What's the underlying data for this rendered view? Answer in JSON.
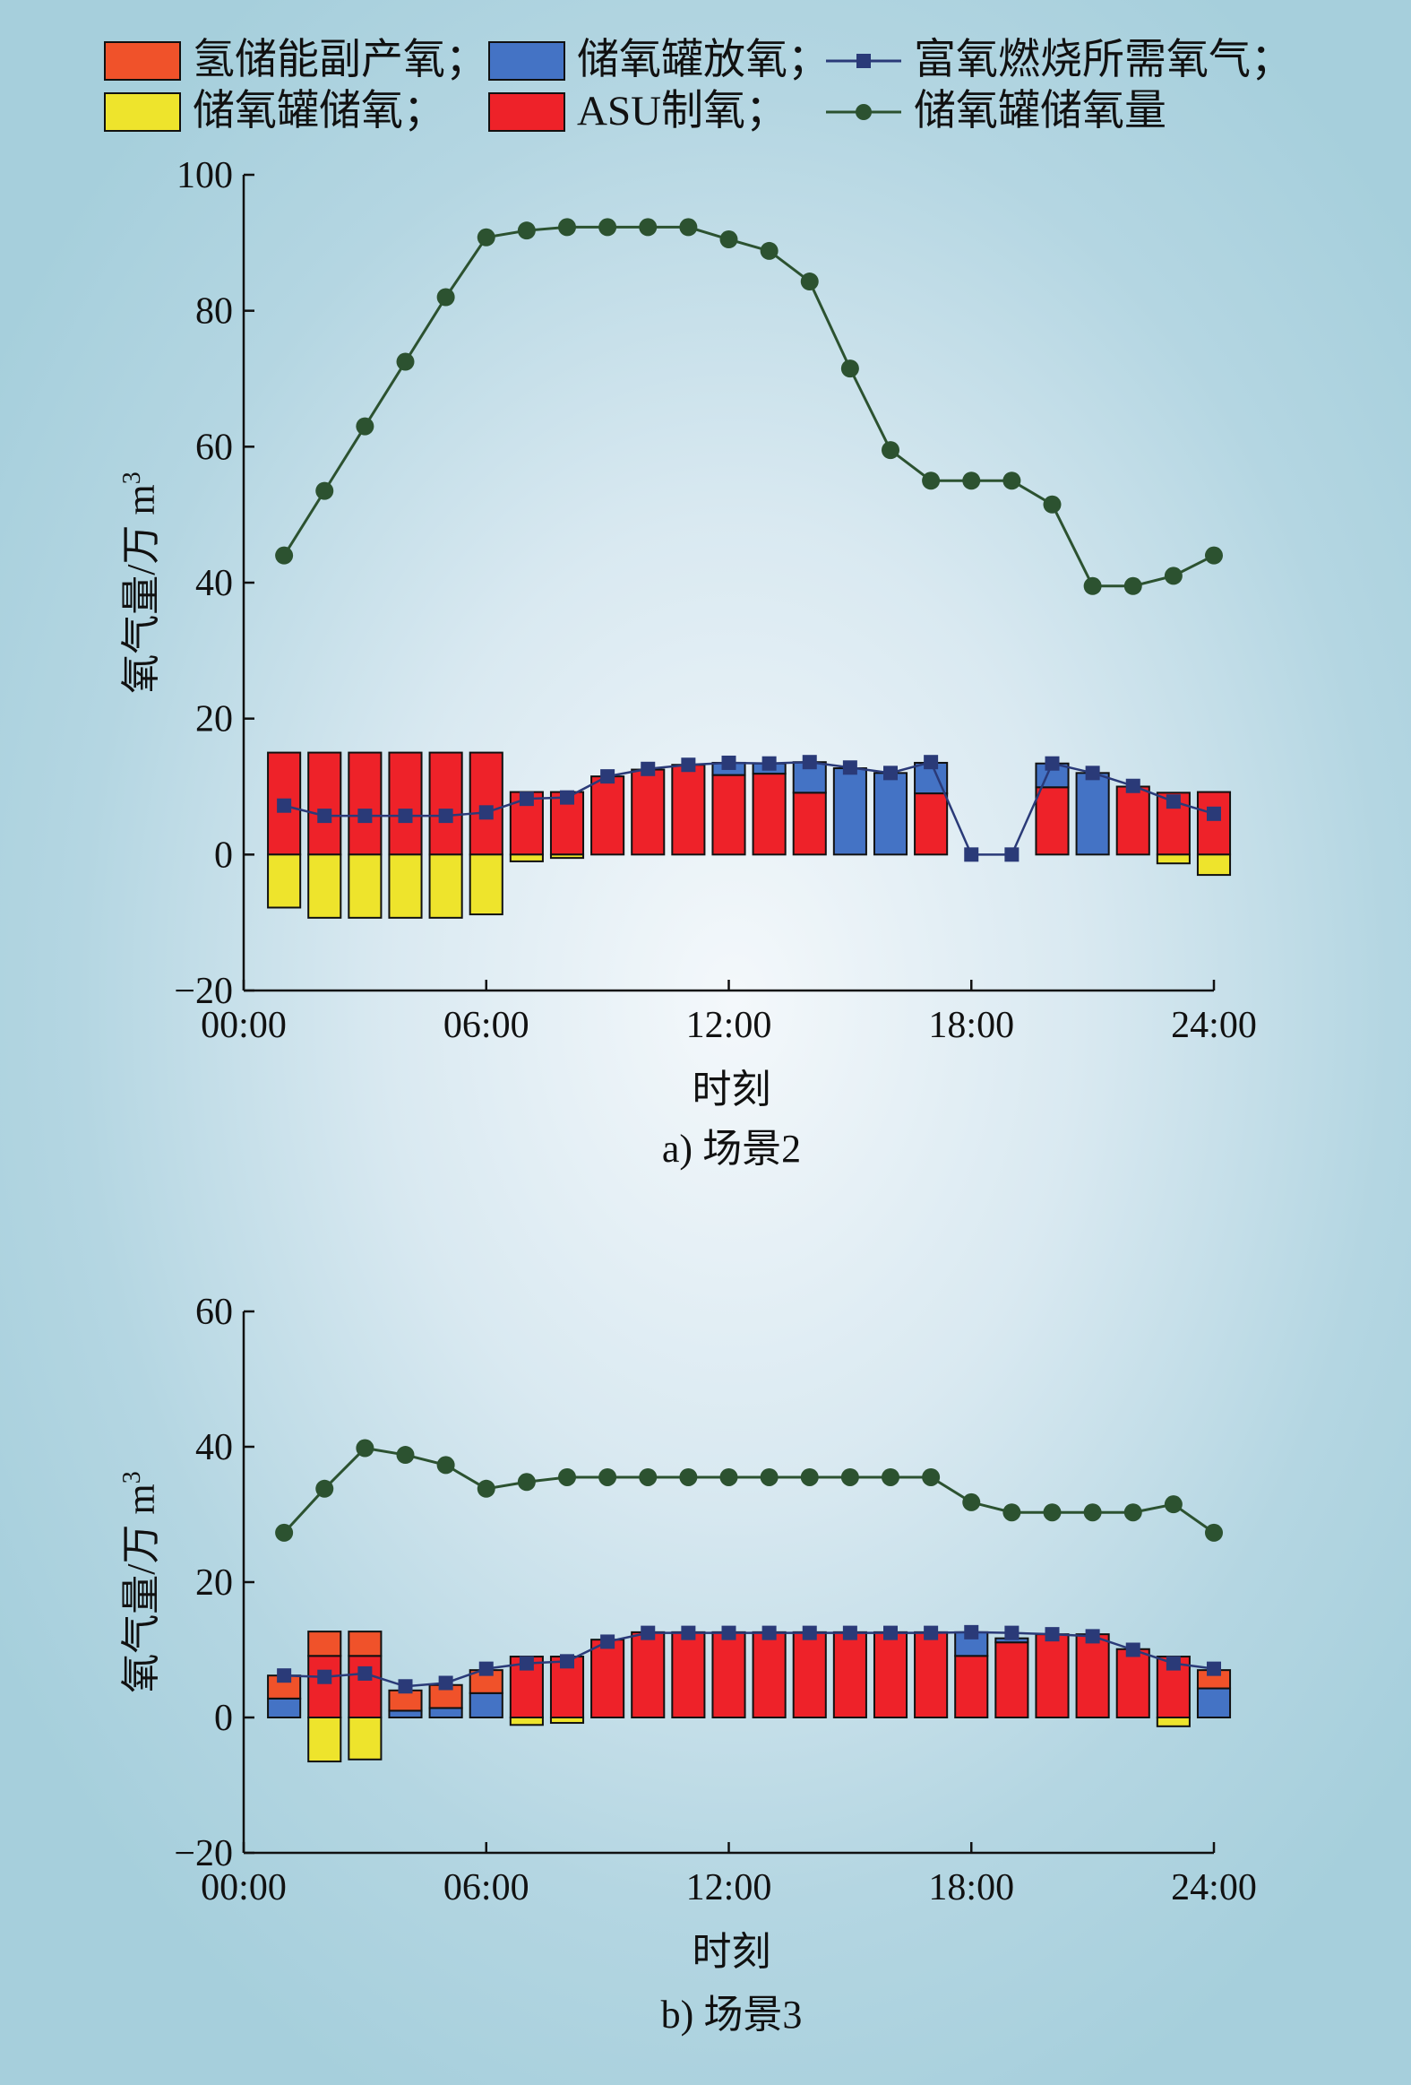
{
  "legend": {
    "items": [
      {
        "label": "氢储能副产氧；",
        "color": "#f0522a",
        "kind": "box"
      },
      {
        "label": "储氧罐放氧；",
        "color": "#4473c5",
        "kind": "box"
      },
      {
        "label": "富氧燃烧所需氧气；",
        "color": "#2a3a78",
        "kind": "line-square"
      },
      {
        "label": "储氧罐储氧；",
        "color": "#eee42c",
        "kind": "box"
      },
      {
        "label": "ASU制氧；",
        "color": "#ee2229",
        "kind": "box"
      },
      {
        "label": "储氧罐储氧量",
        "color": "#2c5230",
        "kind": "line-circle"
      }
    ]
  },
  "colors": {
    "h2_byproduct": "#f0522a",
    "tank_discharge": "#4473c5",
    "tank_charge": "#eee42c",
    "asu": "#ee2229",
    "demand_line": "#2a3a78",
    "storage_line": "#2c5230"
  },
  "chart_data": [
    {
      "type": "bar",
      "caption": "a) 场景2",
      "xlabel": "时刻",
      "ylabel": "氧气量/万 m³",
      "ylim": [
        -20,
        100
      ],
      "yticks": [
        -20,
        0,
        20,
        40,
        60,
        80,
        100
      ],
      "ytick_labels": [
        "−20",
        "0",
        "20",
        "40",
        "60",
        "80",
        "100"
      ],
      "xlim": [
        0,
        24
      ],
      "xticks": [
        0,
        6,
        12,
        18,
        24
      ],
      "xtick_labels": [
        "00:00",
        "06:00",
        "12:00",
        "18:00",
        "24:00"
      ],
      "hours": [
        1,
        2,
        3,
        4,
        5,
        6,
        7,
        8,
        9,
        10,
        11,
        12,
        13,
        14,
        15,
        16,
        17,
        18,
        19,
        20,
        21,
        22,
        23,
        24
      ],
      "series": [
        {
          "name": "氢储能副产氧",
          "values": [
            0,
            0,
            0,
            0,
            0,
            0,
            0,
            0,
            0,
            0,
            0,
            0,
            0,
            0,
            0,
            0,
            0,
            0,
            0,
            0,
            0,
            0,
            0,
            0
          ]
        },
        {
          "name": "储氧罐放氧",
          "values": [
            0,
            0,
            0,
            0,
            0,
            0,
            0,
            0,
            0,
            0,
            0,
            1.8,
            1.5,
            4.5,
            12.7,
            12.0,
            4.5,
            0,
            0,
            3.5,
            12.0,
            0,
            0,
            0
          ]
        },
        {
          "name": "储氧罐储氧",
          "values": [
            -7.8,
            -9.3,
            -9.3,
            -9.3,
            -9.3,
            -8.8,
            -1.0,
            -0.5,
            0,
            0,
            0,
            0,
            0,
            0,
            0,
            0,
            0,
            0,
            0,
            0,
            0,
            0,
            -1.3,
            -3.0
          ]
        },
        {
          "name": "ASU制氧",
          "values": [
            15,
            15,
            15,
            15,
            15,
            15,
            9.2,
            9.2,
            11.5,
            12.5,
            13.2,
            11.7,
            11.9,
            9.1,
            0,
            0,
            9.0,
            0,
            0,
            9.9,
            0,
            10.0,
            9.1,
            9.2
          ]
        },
        {
          "name": "富氧燃烧所需氧气",
          "values": [
            7.2,
            5.7,
            5.7,
            5.7,
            5.7,
            6.2,
            8.2,
            8.4,
            11.5,
            12.6,
            13.2,
            13.5,
            13.4,
            13.6,
            12.8,
            12.0,
            13.6,
            0,
            0,
            13.4,
            12.0,
            10.1,
            7.8,
            6.0
          ]
        },
        {
          "name": "储氧罐储氧量",
          "values": [
            44,
            53.5,
            63,
            72.5,
            82,
            90.8,
            91.8,
            92.3,
            92.3,
            92.3,
            92.3,
            90.5,
            88.8,
            84.3,
            71.5,
            59.5,
            55,
            55,
            55,
            51.5,
            39.5,
            39.5,
            41,
            44
          ]
        }
      ]
    },
    {
      "type": "bar",
      "caption": "b) 场景3",
      "xlabel": "时刻",
      "ylabel": "氧气量/万 m³",
      "ylim": [
        -20,
        60
      ],
      "yticks": [
        -20,
        0,
        20,
        40,
        60
      ],
      "ytick_labels": [
        "−20",
        "0",
        "20",
        "40",
        "60"
      ],
      "xlim": [
        0,
        24
      ],
      "xticks": [
        0,
        6,
        12,
        18,
        24
      ],
      "xtick_labels": [
        "00:00",
        "06:00",
        "12:00",
        "18:00",
        "24:00"
      ],
      "hours": [
        1,
        2,
        3,
        4,
        5,
        6,
        7,
        8,
        9,
        10,
        11,
        12,
        13,
        14,
        15,
        16,
        17,
        18,
        19,
        20,
        21,
        22,
        23,
        24
      ],
      "series": [
        {
          "name": "氢储能副产氧",
          "values": [
            3.4,
            3.6,
            3.6,
            3.0,
            3.4,
            3.4,
            0,
            0,
            0,
            0,
            0,
            0,
            0,
            0,
            0,
            0,
            0,
            0,
            0,
            0,
            0,
            0,
            0,
            2.7
          ]
        },
        {
          "name": "储氧罐放氧",
          "values": [
            2.8,
            0,
            0,
            1.0,
            1.4,
            3.6,
            0,
            0,
            0,
            0,
            0,
            0,
            0,
            0,
            0,
            0,
            0,
            3.5,
            0.6,
            0,
            0,
            0,
            0,
            4.3
          ]
        },
        {
          "name": "储氧罐储氧",
          "values": [
            0,
            -6.5,
            -6.2,
            0,
            0,
            0,
            -1.1,
            -0.8,
            0,
            0,
            0,
            0,
            0,
            0,
            0,
            0,
            0,
            0,
            0,
            0,
            0,
            0,
            -1.3,
            0
          ]
        },
        {
          "name": "ASU制氧",
          "values": [
            0,
            9.1,
            9.1,
            0,
            0,
            0,
            9.0,
            9.0,
            11.5,
            12.6,
            12.6,
            12.6,
            12.6,
            12.6,
            12.6,
            12.6,
            12.6,
            9.1,
            11.1,
            12.3,
            12.3,
            10.1,
            9.0,
            0
          ]
        },
        {
          "name": "富氧燃烧所需氧气",
          "values": [
            6.2,
            6.0,
            6.5,
            4.6,
            5.1,
            7.2,
            8.0,
            8.3,
            11.2,
            12.5,
            12.5,
            12.5,
            12.5,
            12.5,
            12.5,
            12.5,
            12.5,
            12.6,
            12.5,
            12.3,
            12.0,
            10.0,
            8.0,
            7.2
          ]
        },
        {
          "name": "储氧罐储氧量",
          "values": [
            27.3,
            33.8,
            39.8,
            38.8,
            37.3,
            33.8,
            34.8,
            35.5,
            35.5,
            35.5,
            35.5,
            35.5,
            35.5,
            35.5,
            35.5,
            35.5,
            35.5,
            31.8,
            30.3,
            30.3,
            30.3,
            30.3,
            31.5,
            27.3
          ]
        }
      ]
    }
  ]
}
